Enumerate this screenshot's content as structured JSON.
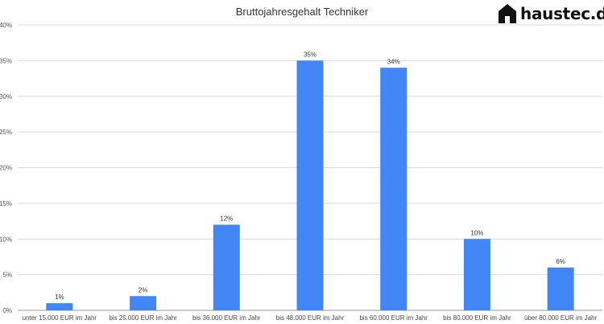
{
  "logo": {
    "text": "haustec.de",
    "icon": "house-icon"
  },
  "chart_data": {
    "type": "bar",
    "title": "Bruttojahresgehalt Techniker",
    "xlabel": "",
    "ylabel": "",
    "categories": [
      "unter 15.000 EUR im Jahr",
      "bis 25.000 EUR im Jahr",
      "bis 36.000 EUR im Jahr",
      "bis 48.000 EUR im Jahr",
      "bis 60.000 EUR im Jahr",
      "bis 80.000 EUR im Jahr",
      "über 80.000 EUR im Jahr"
    ],
    "values": [
      1,
      2,
      12,
      35,
      34,
      10,
      6
    ],
    "value_labels": [
      "1%",
      "2%",
      "12%",
      "35%",
      "34%",
      "10%",
      "6%"
    ],
    "ylim": [
      0,
      40
    ],
    "yticks": [
      0,
      5,
      10,
      15,
      20,
      25,
      30,
      35,
      40
    ],
    "ytick_labels": [
      "0%",
      "5%",
      "10%",
      "15%",
      "20%",
      "25%",
      "30%",
      "35%",
      "40%"
    ],
    "grid": true,
    "legend": "none",
    "bar_color": "#4285f4"
  }
}
